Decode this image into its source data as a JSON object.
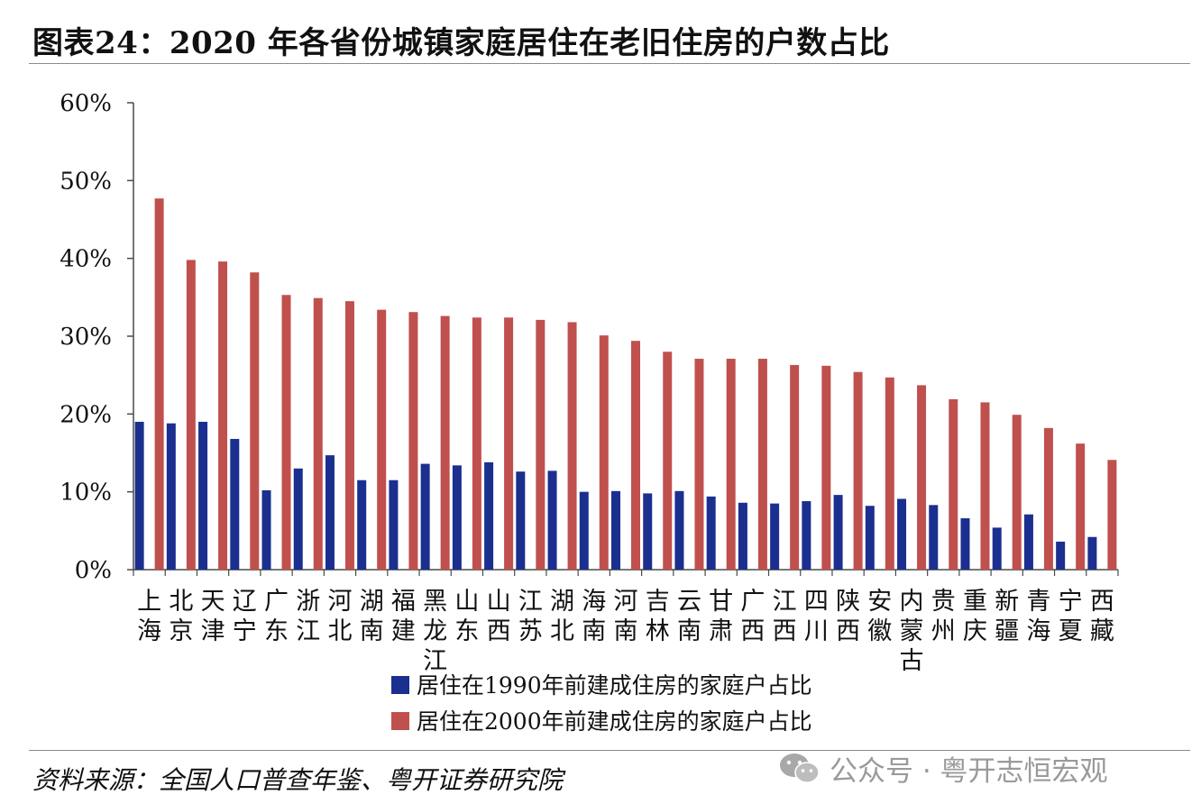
{
  "figure": {
    "title": "图表24：2020 年各省份城镇家庭居住在老旧住房的户数占比",
    "source": "资料来源：全国人口普查年鉴、粤开证券研究院",
    "watermark": "公众号 · 粤开志恒宏观",
    "watermark_icon": "wechat-icon"
  },
  "colors": {
    "series_1990": "#1b2f8f",
    "series_2000": "#c0504d",
    "axis": "#4a4a4a",
    "rule": "#8a8a8a"
  },
  "chart_data": {
    "type": "bar",
    "title": "图表24：2020 年各省份城镇家庭居住在老旧住房的户数占比",
    "xlabel": "",
    "ylabel": "",
    "ylim": [
      0,
      60
    ],
    "yticks": [
      0,
      10,
      20,
      30,
      40,
      50,
      60
    ],
    "ytick_labels": [
      "0%",
      "10%",
      "20%",
      "30%",
      "40%",
      "50%",
      "60%"
    ],
    "grid": false,
    "legend_position": "bottom",
    "categories": [
      "上海",
      "北京",
      "天津",
      "辽宁",
      "广东",
      "浙江",
      "河北",
      "湖南",
      "福建",
      "黑龙江",
      "山东",
      "山西",
      "江苏",
      "湖北",
      "海南",
      "河南",
      "吉林",
      "云南",
      "甘肃",
      "广西",
      "江西",
      "四川",
      "陕西",
      "安徽",
      "内蒙古",
      "贵州",
      "重庆",
      "新疆",
      "青海",
      "宁夏",
      "西藏"
    ],
    "series": [
      {
        "name": "居住在1990年前建成住房的家庭户占比",
        "values": [
          19.0,
          18.8,
          19.0,
          16.8,
          10.2,
          13.0,
          14.7,
          11.5,
          11.5,
          13.6,
          13.4,
          13.8,
          12.6,
          12.7,
          10.0,
          10.1,
          9.8,
          10.1,
          9.4,
          8.6,
          8.5,
          8.8,
          9.6,
          8.2,
          9.1,
          8.3,
          6.6,
          5.4,
          7.1,
          3.6,
          4.2
        ]
      },
      {
        "name": "居住在2000年前建成住房的家庭户占比",
        "values": [
          47.7,
          39.8,
          39.6,
          38.2,
          35.3,
          34.9,
          34.5,
          33.4,
          33.1,
          32.6,
          32.4,
          32.4,
          32.1,
          31.8,
          30.1,
          29.4,
          28.0,
          27.1,
          27.1,
          27.1,
          26.3,
          26.2,
          25.4,
          24.7,
          23.7,
          21.9,
          21.5,
          19.9,
          18.2,
          16.2,
          14.1
        ]
      }
    ]
  }
}
